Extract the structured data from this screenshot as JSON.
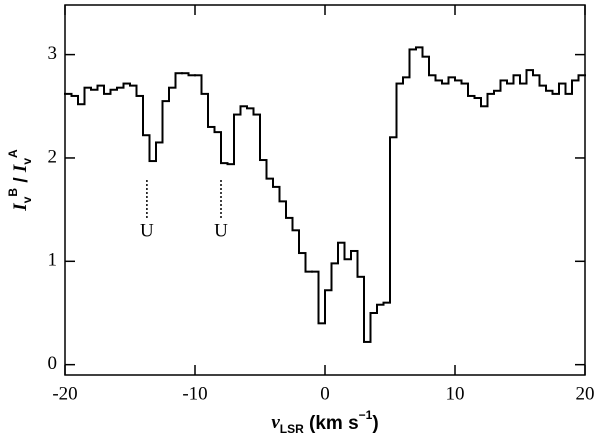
{
  "chart_data": {
    "type": "histogram",
    "bins": [
      -20,
      -19.5,
      -19,
      -18.5,
      -18,
      -17.5,
      -17,
      -16.5,
      -16,
      -15.5,
      -15,
      -14.5,
      -14,
      -13.5,
      -13,
      -12.5,
      -12,
      -11.5,
      -11,
      -10.5,
      -10,
      -9.5,
      -9,
      -8.5,
      -8,
      -7.5,
      -7,
      -6.5,
      -6,
      -5.5,
      -5,
      -4.5,
      -4,
      -3.5,
      -3,
      -2.5,
      -2,
      -1.5,
      -1,
      -0.5,
      0,
      0.5,
      1,
      1.5,
      2,
      2.5,
      3,
      3.5,
      4,
      4.5,
      5,
      5.5,
      6,
      6.5,
      7,
      7.5,
      8,
      8.5,
      9,
      9.5,
      10,
      10.5,
      11,
      11.5,
      12,
      12.5,
      13,
      13.5,
      14,
      14.5,
      15,
      15.5,
      16,
      16.5,
      17,
      17.5,
      18,
      18.5,
      19,
      19.5,
      20
    ],
    "values": [
      2.62,
      2.6,
      2.52,
      2.68,
      2.66,
      2.7,
      2.62,
      2.66,
      2.68,
      2.72,
      2.7,
      2.6,
      2.22,
      1.97,
      2.15,
      2.55,
      2.68,
      2.82,
      2.82,
      2.8,
      2.8,
      2.62,
      2.3,
      2.25,
      1.95,
      1.94,
      2.42,
      2.5,
      2.48,
      2.42,
      1.98,
      1.8,
      1.72,
      1.58,
      1.42,
      1.3,
      1.08,
      0.9,
      0.9,
      0.4,
      0.72,
      0.98,
      1.18,
      1.02,
      1.1,
      0.85,
      0.22,
      0.5,
      0.58,
      0.6,
      2.2,
      2.72,
      2.78,
      3.05,
      3.07,
      2.98,
      2.8,
      2.75,
      2.72,
      2.78,
      2.75,
      2.72,
      2.6,
      2.58,
      2.5,
      2.62,
      2.65,
      2.75,
      2.72,
      2.8,
      2.72,
      2.85,
      2.8,
      2.7,
      2.65,
      2.62,
      2.72,
      2.62,
      2.75,
      2.8
    ],
    "color": "#000000",
    "xlim": [
      -20,
      20
    ],
    "xticks": [
      -20,
      -10,
      0,
      10,
      20
    ],
    "ylim": [
      -0.1,
      3.48
    ],
    "yticks": [
      0,
      1,
      2,
      3
    ],
    "xlabel": [
      {
        "text": "v",
        "style": "italic"
      },
      {
        "text": "LSR",
        "style": "sub"
      },
      {
        "text": " (km s",
        "style": ""
      },
      {
        "text": "−1",
        "style": "sup"
      },
      {
        "text": ")",
        "style": ""
      }
    ],
    "ylabel": [
      {
        "text": "I",
        "style": "italic"
      },
      {
        "text": "v",
        "style": "sub"
      },
      {
        "text": "B",
        "style": "sup"
      },
      {
        "text": " / ",
        "style": ""
      },
      {
        "text": "I",
        "style": "italic"
      },
      {
        "text": "v",
        "style": "sub"
      },
      {
        "text": "A",
        "style": "sup"
      }
    ],
    "annotations": [
      {
        "text": "U",
        "x": -13.7
      },
      {
        "text": "U",
        "x": -8
      }
    ]
  }
}
